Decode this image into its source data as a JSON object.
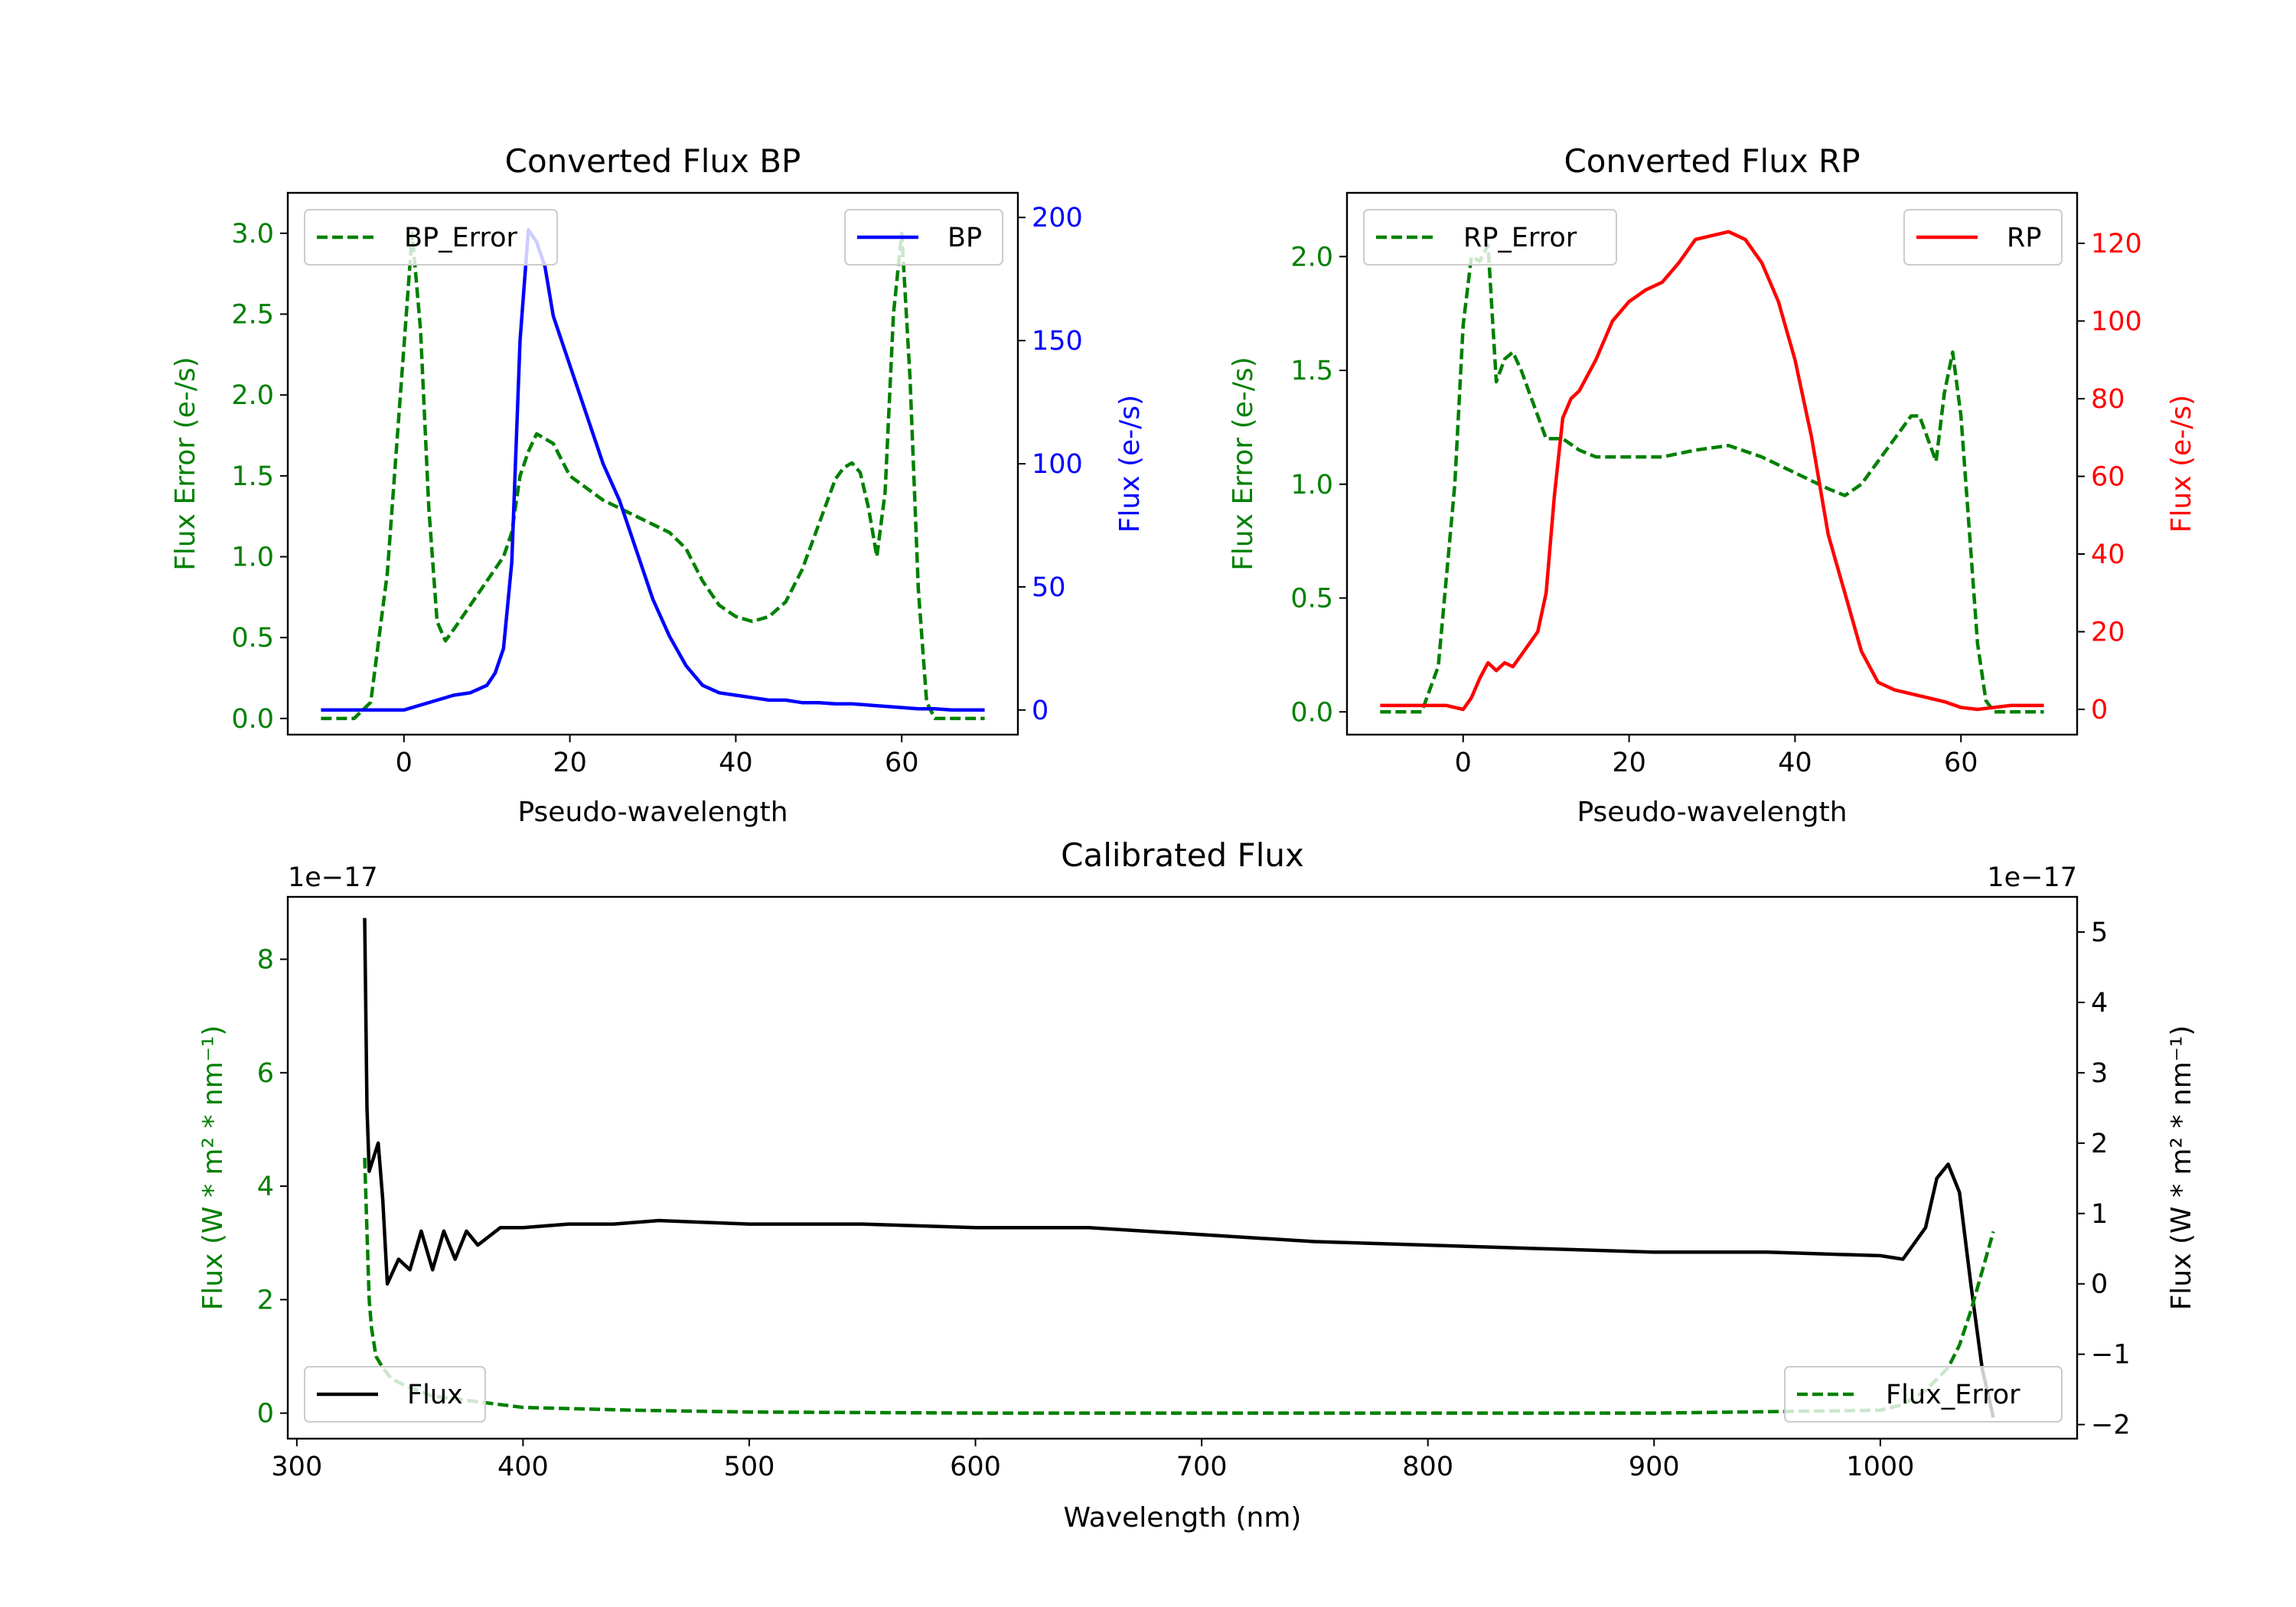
{
  "chart_data": [
    {
      "type": "line",
      "title": "Converted Flux BP",
      "xlabel": "Pseudo-wavelength",
      "xlim": [
        -14,
        74
      ],
      "xticks": [
        0,
        20,
        40,
        60
      ],
      "axes": {
        "left": {
          "label": "Flux Error (e-/s)",
          "color": "#008000",
          "ylim": [
            -0.1,
            3.25
          ],
          "ticks": [
            0.0,
            0.5,
            1.0,
            1.5,
            2.0,
            2.5,
            3.0
          ],
          "tick_labels": [
            "0.0",
            "0.5",
            "1.0",
            "1.5",
            "2.0",
            "2.5",
            "3.0"
          ]
        },
        "right": {
          "label": "Flux (e-/s)",
          "color": "#0000ff",
          "ylim": [
            -10,
            210
          ],
          "ticks": [
            0,
            50,
            100,
            150,
            200
          ],
          "tick_labels": [
            "0",
            "50",
            "100",
            "150",
            "200"
          ]
        }
      },
      "series": [
        {
          "name": "BP_Error",
          "axis": "left",
          "style": "dashed",
          "color": "#008000",
          "x": [
            -10,
            -6,
            -4,
            -2,
            0,
            1,
            2,
            3,
            4,
            5,
            6,
            8,
            10,
            12,
            13,
            14,
            15,
            16,
            18,
            20,
            24,
            28,
            32,
            34,
            36,
            38,
            40,
            42,
            44,
            46,
            48,
            50,
            52,
            53,
            54,
            55,
            56,
            57,
            58,
            59,
            60,
            61,
            62,
            63,
            64,
            66,
            70
          ],
          "y": [
            0.0,
            0.0,
            0.1,
            0.9,
            2.3,
            3.0,
            2.4,
            1.3,
            0.6,
            0.48,
            0.55,
            0.7,
            0.85,
            1.0,
            1.15,
            1.5,
            1.65,
            1.76,
            1.7,
            1.5,
            1.35,
            1.25,
            1.15,
            1.05,
            0.85,
            0.7,
            0.63,
            0.6,
            0.63,
            0.72,
            0.92,
            1.2,
            1.48,
            1.55,
            1.58,
            1.52,
            1.3,
            1.0,
            1.4,
            2.5,
            3.0,
            2.1,
            0.8,
            0.1,
            0.0,
            0.0,
            0.0
          ]
        },
        {
          "name": "BP",
          "axis": "right",
          "style": "solid",
          "color": "#0000ff",
          "x": [
            -10,
            -4,
            0,
            2,
            6,
            8,
            10,
            11,
            12,
            13,
            14,
            15,
            16,
            17,
            18,
            20,
            22,
            24,
            26,
            28,
            30,
            32,
            34,
            36,
            38,
            40,
            42,
            44,
            46,
            48,
            50,
            52,
            54,
            56,
            58,
            60,
            62,
            64,
            66,
            70
          ],
          "y": [
            0,
            0,
            0,
            2,
            6,
            7,
            10,
            15,
            25,
            60,
            150,
            195,
            190,
            180,
            160,
            140,
            120,
            100,
            85,
            65,
            45,
            30,
            18,
            10,
            7,
            6,
            5,
            4,
            4,
            3,
            3,
            2.5,
            2.5,
            2,
            1.5,
            1,
            0.5,
            0.5,
            0,
            0
          ]
        }
      ],
      "legend": [
        {
          "label": "BP_Error",
          "position": "top-left"
        },
        {
          "label": "BP",
          "position": "top-right"
        }
      ]
    },
    {
      "type": "line",
      "title": "Converted Flux RP",
      "xlabel": "Pseudo-wavelength",
      "xlim": [
        -14,
        74
      ],
      "xticks": [
        0,
        20,
        40,
        60
      ],
      "axes": {
        "left": {
          "label": "Flux Error (e-/s)",
          "color": "#008000",
          "ylim": [
            -0.1,
            2.28
          ],
          "ticks": [
            0.0,
            0.5,
            1.0,
            1.5,
            2.0
          ],
          "tick_labels": [
            "0.0",
            "0.5",
            "1.0",
            "1.5",
            "2.0"
          ]
        },
        "right": {
          "label": "Flux (e-/s)",
          "color": "#ff0000",
          "ylim": [
            -6.5,
            133
          ],
          "ticks": [
            0,
            20,
            40,
            60,
            80,
            100,
            120
          ],
          "tick_labels": [
            "0",
            "20",
            "40",
            "60",
            "80",
            "100",
            "120"
          ]
        }
      },
      "series": [
        {
          "name": "RP_Error",
          "axis": "left",
          "style": "dashed",
          "color": "#008000",
          "x": [
            -10,
            -5,
            -3,
            -1,
            0,
            1,
            2,
            3,
            4,
            5,
            6,
            7,
            8,
            10,
            12,
            14,
            16,
            20,
            24,
            28,
            32,
            36,
            40,
            44,
            46,
            48,
            50,
            52,
            54,
            55,
            56,
            57,
            58,
            59,
            60,
            61,
            62,
            63,
            64,
            70
          ],
          "y": [
            0.0,
            0.0,
            0.2,
            1.0,
            1.7,
            2.0,
            1.98,
            2.05,
            1.45,
            1.55,
            1.58,
            1.5,
            1.4,
            1.2,
            1.2,
            1.15,
            1.12,
            1.12,
            1.12,
            1.15,
            1.17,
            1.12,
            1.05,
            0.98,
            0.95,
            1.0,
            1.1,
            1.2,
            1.3,
            1.3,
            1.2,
            1.1,
            1.4,
            1.58,
            1.3,
            0.8,
            0.3,
            0.05,
            0.0,
            0.0
          ]
        },
        {
          "name": "RP",
          "axis": "right",
          "style": "solid",
          "color": "#ff0000",
          "x": [
            -10,
            -2,
            0,
            1,
            2,
            3,
            4,
            5,
            6,
            7,
            8,
            9,
            10,
            11,
            12,
            13,
            14,
            16,
            18,
            20,
            22,
            24,
            26,
            28,
            30,
            32,
            34,
            36,
            38,
            40,
            42,
            44,
            46,
            48,
            50,
            52,
            54,
            56,
            58,
            60,
            62,
            66,
            70
          ],
          "y": [
            1,
            1,
            0,
            3,
            8,
            12,
            10,
            12,
            11,
            14,
            17,
            20,
            30,
            55,
            75,
            80,
            82,
            90,
            100,
            105,
            108,
            110,
            115,
            121,
            122,
            123,
            121,
            115,
            105,
            90,
            70,
            45,
            30,
            15,
            7,
            5,
            4,
            3,
            2,
            0.5,
            0,
            1,
            1
          ]
        }
      ],
      "legend": [
        {
          "label": "RP_Error",
          "position": "top-left"
        },
        {
          "label": "RP",
          "position": "top-right"
        }
      ]
    },
    {
      "type": "line",
      "title": "Calibrated Flux",
      "xlabel": "Wavelength (nm)",
      "xlim": [
        296,
        1087
      ],
      "xticks": [
        300,
        400,
        500,
        600,
        700,
        800,
        900,
        1000
      ],
      "axes": {
        "left": {
          "label": "Flux (W * m² * nm⁻¹)",
          "color": "#008000",
          "offset_label": "1e−17",
          "ylim": [
            -0.45,
            9.1
          ],
          "ticks": [
            0,
            2,
            4,
            6,
            8
          ],
          "tick_labels": [
            "0",
            "2",
            "4",
            "6",
            "8"
          ]
        },
        "right": {
          "label": "Flux (W * m² * nm⁻¹)",
          "color": "#000000",
          "offset_label": "1e−17",
          "ylim": [
            -2.2,
            5.5
          ],
          "ticks": [
            -2,
            -1,
            0,
            1,
            2,
            3,
            4,
            5
          ],
          "tick_labels": [
            "−2",
            "−1",
            "0",
            "1",
            "2",
            "3",
            "4",
            "5"
          ]
        }
      },
      "series": [
        {
          "name": "Flux",
          "axis": "right",
          "style": "solid",
          "color": "#000000",
          "x": [
            330,
            331,
            332,
            334,
            336,
            338,
            340,
            345,
            350,
            355,
            360,
            365,
            370,
            375,
            380,
            390,
            400,
            420,
            440,
            460,
            500,
            550,
            600,
            650,
            700,
            750,
            800,
            850,
            900,
            950,
            1000,
            1010,
            1020,
            1025,
            1030,
            1035,
            1040,
            1045,
            1050
          ],
          "y": [
            5.2,
            2.5,
            1.6,
            1.8,
            2.0,
            1.2,
            0.0,
            0.35,
            0.2,
            0.75,
            0.2,
            0.75,
            0.35,
            0.75,
            0.55,
            0.8,
            0.8,
            0.85,
            0.85,
            0.9,
            0.85,
            0.85,
            0.8,
            0.8,
            0.7,
            0.6,
            0.55,
            0.5,
            0.45,
            0.45,
            0.4,
            0.35,
            0.8,
            1.5,
            1.7,
            1.3,
            0.0,
            -1.2,
            -1.9
          ]
        },
        {
          "name": "Flux_Error",
          "axis": "left",
          "style": "dashed",
          "color": "#008000",
          "x": [
            330,
            331,
            332,
            333,
            335,
            338,
            342,
            350,
            360,
            380,
            400,
            450,
            500,
            600,
            700,
            800,
            900,
            1000,
            1010,
            1020,
            1030,
            1035,
            1040,
            1045,
            1050
          ],
          "y": [
            4.5,
            3.2,
            2.0,
            1.5,
            1.0,
            0.8,
            0.6,
            0.45,
            0.3,
            0.2,
            0.1,
            0.05,
            0.02,
            0.0,
            0.0,
            0.0,
            0.0,
            0.05,
            0.15,
            0.4,
            0.8,
            1.2,
            1.8,
            2.5,
            3.2
          ]
        }
      ],
      "legend": [
        {
          "label": "Flux",
          "position": "lower-left"
        },
        {
          "label": "Flux_Error",
          "position": "lower-right"
        }
      ]
    }
  ]
}
